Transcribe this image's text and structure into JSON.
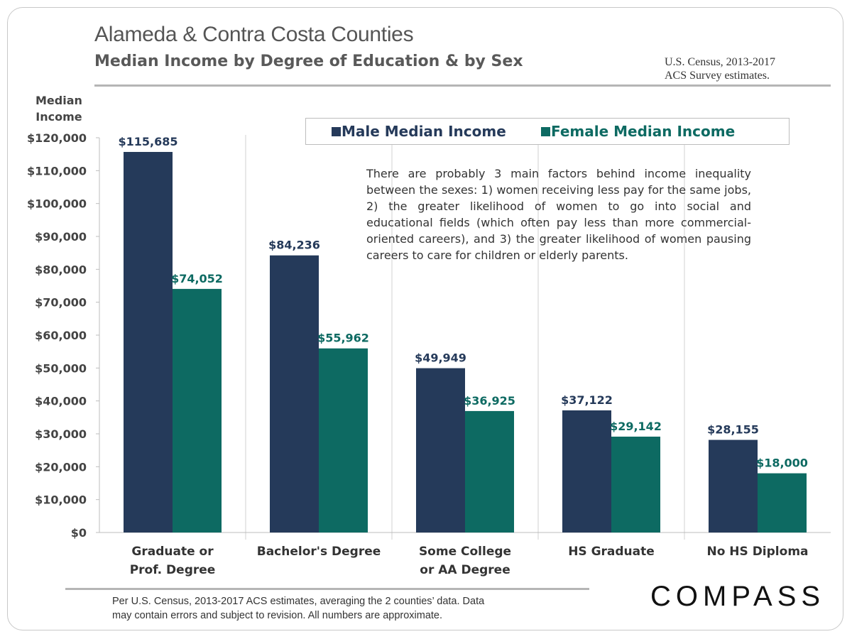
{
  "header": {
    "title": "Alameda & Contra Costa Counties",
    "subtitle": "Median Income by Degree of Education & by Sex",
    "source_line1": "U.S. Census, 2013-2017",
    "source_line2": "ACS Survey estimates."
  },
  "annotation": "There are probably 3 main factors behind income inequality between the sexes: 1) women receiving less pay for the same jobs, 2) the greater likelihood of women to go into social and educational fields (which often pay less than more commercial-oriented careers), and 3) the greater likelihood of women pausing careers to care for children or elderly parents.",
  "footer": {
    "note_line1": "Per U.S. Census, 2013-2017 ACS estimates,  averaging the 2 counties’ data. Data",
    "note_line2": "may contain errors and subject to revision. All numbers are approximate.",
    "logo": "COMPASS"
  },
  "chart_data": {
    "type": "bar",
    "ylabel_line1": "Median",
    "ylabel_line2": "Income",
    "ylim": [
      0,
      120000
    ],
    "yticks": [
      0,
      10000,
      20000,
      30000,
      40000,
      50000,
      60000,
      70000,
      80000,
      90000,
      100000,
      110000,
      120000
    ],
    "ytick_labels": [
      "$0",
      "$10,000",
      "$20,000",
      "$30,000",
      "$40,000",
      "$50,000",
      "$60,000",
      "$70,000",
      "$80,000",
      "$90,000",
      "$100,000",
      "$110,000",
      "$120,000"
    ],
    "categories": [
      [
        "Graduate or",
        "Prof. Degree"
      ],
      [
        "Bachelor's Degree"
      ],
      [
        "Some College",
        "or AA Degree"
      ],
      [
        "HS Graduate"
      ],
      [
        "No HS Diploma"
      ]
    ],
    "series": [
      {
        "name": "Male Median Income",
        "color": "#253a5a",
        "values": [
          115685,
          84236,
          49949,
          37122,
          28155
        ],
        "labels": [
          "$115,685",
          "$84,236",
          "$49,949",
          "$37,122",
          "$28,155"
        ]
      },
      {
        "name": "Female Median Income",
        "color": "#0d6a62",
        "values": [
          74052,
          55962,
          36925,
          29142,
          18000
        ],
        "labels": [
          "$74,052",
          "$55,962",
          "$36,925",
          "$29,142",
          "$18,000"
        ]
      }
    ],
    "legend_position": "top-right",
    "grid": "vertical separators"
  }
}
